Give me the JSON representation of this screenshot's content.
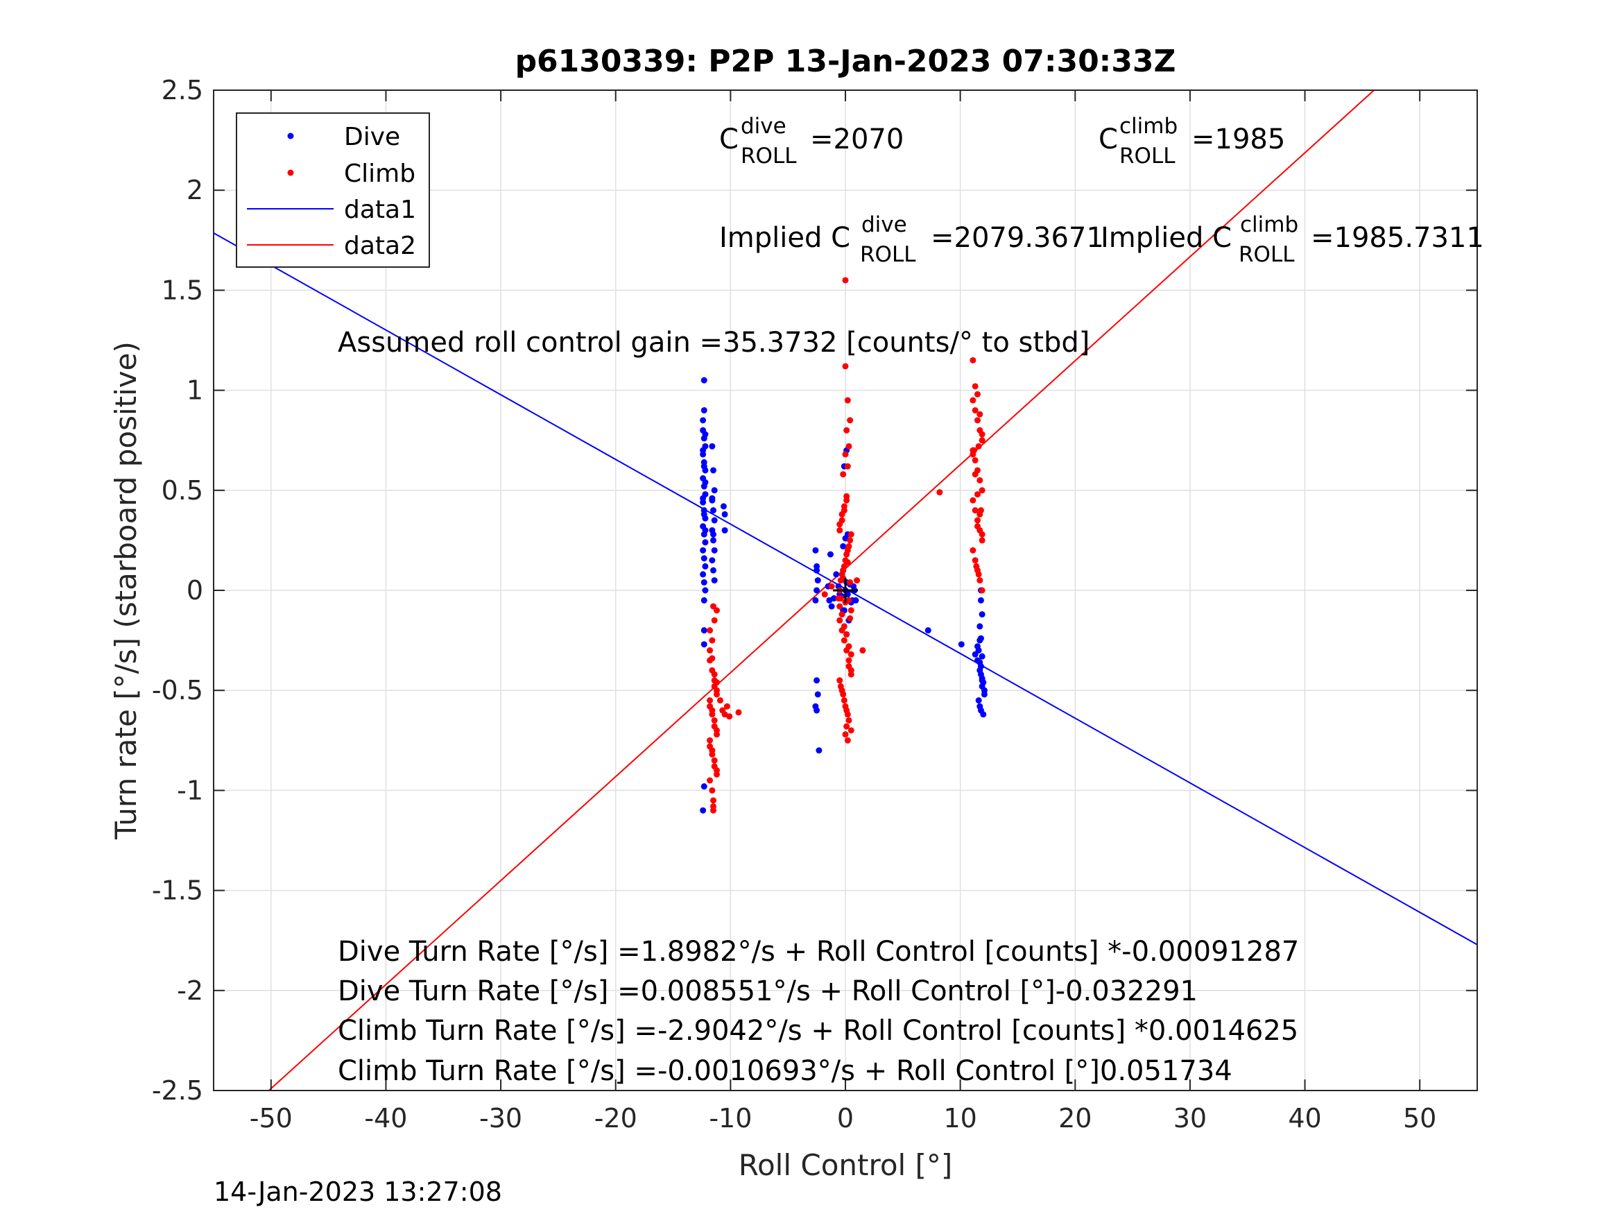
{
  "chart_data": {
    "type": "scatter",
    "title": "p6130339: P2P 13-Jan-2023 07:30:33Z",
    "xlabel": "Roll Control [°]",
    "ylabel": "Turn rate [°/s] (starboard positive)",
    "xlim": [
      -55,
      55
    ],
    "ylim": [
      -2.5,
      2.5
    ],
    "xticks": [
      -50,
      -40,
      -30,
      -20,
      -10,
      0,
      10,
      20,
      30,
      40,
      50
    ],
    "yticks": [
      -2.5,
      -2,
      -1.5,
      -1,
      -0.5,
      0,
      0.5,
      1,
      1.5,
      2,
      2.5
    ],
    "xtick_labels": [
      "-50",
      "-40",
      "-30",
      "-20",
      "-10",
      "0",
      "10",
      "20",
      "30",
      "40",
      "50"
    ],
    "ytick_labels": [
      "-2.5",
      "-2",
      "-1.5",
      "-1",
      "-0.5",
      "0",
      "0.5",
      "1",
      "1.5",
      "2",
      "2.5"
    ],
    "grid": true,
    "legend_position": "top-left",
    "legend": [
      "Dive",
      "Climb",
      "data1",
      "data2"
    ],
    "colors": {
      "dive": "#0000ff",
      "climb": "#ff0000",
      "axes": "#262626",
      "grid": "#dfdfdf"
    },
    "series": [
      {
        "name": "Dive",
        "style": "points",
        "x": [
          -12.4,
          -12.3,
          -12.2,
          -12.4,
          -12.3,
          -12.2,
          -12.4,
          -12.3,
          -12.2,
          -12.4,
          -12.3,
          -12.2,
          -12.4,
          -12.3,
          -12.2,
          -12.4,
          -12.3,
          -12.2,
          -12.4,
          -12.3,
          -12.2,
          -12.4,
          -12.3,
          -12.2,
          -12.4,
          -12.3,
          -12.2,
          -12.4,
          -12.3,
          -12.2,
          -12.3,
          -12.3,
          -12.3,
          -12.3,
          -12.3,
          -12.4,
          -11.6,
          -11.5,
          -11.4,
          -11.6,
          -11.5,
          -11.4,
          -11.6,
          -11.5,
          -11.4,
          -11.6,
          -11.5,
          -11.4,
          -11.6,
          -11.5,
          -10.6,
          -10.5,
          -10.5,
          -2.6,
          -2.5,
          -2.4,
          -2.5,
          -2.6,
          -2.5,
          -2.4,
          -2.5,
          -2.3,
          -2.5,
          -2.6,
          -1.5,
          -1.4,
          -1.2,
          -1.3,
          -1.0,
          -0.8,
          -0.6,
          -0.5,
          -0.4,
          -0.3,
          -0.2,
          -0.1,
          0.0,
          0.1,
          0.2,
          0.4,
          0.6,
          0.8,
          -0.2,
          0.0,
          0.2,
          -0.2,
          0.1,
          0.3,
          0.5,
          0.7,
          0.9,
          0.1,
          -0.1,
          7.2,
          10.1,
          11.3,
          11.5,
          11.7,
          11.9,
          12.1,
          11.5,
          11.7,
          11.9,
          12.1,
          11.6,
          11.8,
          12.0,
          11.6,
          11.8,
          12.0,
          11.7,
          11.9,
          11.8,
          11.7,
          11.8,
          11.9,
          11.8,
          11.9,
          11.7,
          11.8
        ],
        "y": [
          0.8,
          0.76,
          0.72,
          0.68,
          0.64,
          0.6,
          0.56,
          0.52,
          0.48,
          0.44,
          0.4,
          0.36,
          0.32,
          0.28,
          0.24,
          0.2,
          0.16,
          0.12,
          0.08,
          0.04,
          0.0,
          0.85,
          0.9,
          0.78,
          0.7,
          0.62,
          0.54,
          0.46,
          0.38,
          0.3,
          1.05,
          -0.05,
          -0.2,
          -0.27,
          -0.98,
          -1.1,
          0.72,
          0.6,
          0.5,
          0.45,
          0.4,
          0.35,
          0.3,
          0.25,
          0.2,
          0.15,
          0.1,
          0.05,
          0.46,
          0.28,
          0.42,
          0.38,
          0.3,
          0.2,
          0.1,
          0.05,
          0.0,
          -0.05,
          -0.45,
          -0.52,
          -0.6,
          -0.8,
          0.12,
          -0.58,
          0.02,
          -0.05,
          -0.08,
          0.18,
          -0.04,
          0.08,
          0.02,
          -0.02,
          0.05,
          -0.03,
          0.1,
          -0.1,
          0.0,
          0.04,
          -0.02,
          0.03,
          -0.05,
          0.0,
          0.22,
          0.26,
          0.28,
          -0.1,
          -0.22,
          -0.15,
          -0.06,
          0.02,
          -0.05,
          0.7,
          0.62,
          -0.2,
          -0.27,
          -0.32,
          -0.35,
          -0.4,
          -0.45,
          -0.5,
          -0.28,
          -0.36,
          -0.44,
          -0.52,
          -0.3,
          -0.38,
          -0.46,
          -0.55,
          -0.6,
          -0.62,
          -0.25,
          -0.33,
          -0.05,
          -0.58,
          -0.42,
          -0.48,
          0.0,
          -0.12,
          -0.18,
          -0.24
        ]
      },
      {
        "name": "Climb",
        "style": "points",
        "x": [
          -11.8,
          -11.6,
          -11.4,
          -11.2,
          -11.8,
          -11.6,
          -11.4,
          -11.2,
          -11.8,
          -11.6,
          -11.4,
          -11.2,
          -11.8,
          -11.6,
          -11.4,
          -11.2,
          -11.8,
          -11.6,
          -11.4,
          -11.2,
          -11.8,
          -11.6,
          -11.4,
          -11.2,
          -11.8,
          -11.6,
          -11.4,
          -11.2,
          -11.8,
          -11.6,
          -11.4,
          -11.2,
          -11.5,
          -11.5,
          -11.5,
          -11.5,
          -10.9,
          -10.7,
          -10.5,
          -10.3,
          -10.1,
          -9.3,
          -1.8,
          -1.2,
          -0.6,
          -0.4,
          -0.2,
          0.0,
          0.2,
          0.4,
          -0.5,
          -0.3,
          -0.1,
          0.1,
          0.3,
          0.5,
          -0.5,
          -0.3,
          -0.1,
          0.1,
          0.3,
          0.5,
          -0.5,
          -0.3,
          -0.1,
          0.1,
          0.3,
          0.5,
          -0.5,
          -0.3,
          -0.1,
          0.1,
          0.3,
          0.5,
          -0.5,
          -0.3,
          -0.1,
          0.1,
          0.3,
          0.5,
          -0.5,
          -0.3,
          -0.1,
          0.1,
          0.3,
          0.5,
          -0.4,
          -0.2,
          0.0,
          0.2,
          0.4,
          -0.4,
          -0.2,
          0.0,
          0.2,
          0.4,
          0.0,
          0.0,
          0.2,
          0.4,
          0.1,
          0.3,
          0.0,
          0.2,
          -0.2,
          0.0,
          0.2,
          0.1,
          1.0,
          1.5,
          8.2,
          11.1,
          11.3,
          11.5,
          11.7,
          11.9,
          11.1,
          11.3,
          11.5,
          11.7,
          11.9,
          11.1,
          11.3,
          11.5,
          11.7,
          11.9,
          11.1,
          11.3,
          11.5,
          11.7,
          11.9,
          11.1,
          11.3,
          11.5,
          11.7,
          11.9,
          11.1,
          11.3,
          11.5,
          11.7,
          11.9,
          11.6,
          11.5,
          11.4,
          11.6,
          11.2,
          11.8
        ],
        "y": [
          -0.35,
          -0.4,
          -0.45,
          -0.5,
          -0.55,
          -0.6,
          -0.65,
          -0.7,
          -0.75,
          -0.8,
          -0.85,
          -0.9,
          -0.95,
          -1.0,
          -0.48,
          -0.52,
          -0.58,
          -0.62,
          -0.68,
          -0.72,
          -0.78,
          -0.82,
          -0.88,
          -0.92,
          -0.3,
          -0.34,
          -0.42,
          -0.46,
          -0.2,
          -0.25,
          -0.15,
          -0.1,
          -1.05,
          -1.08,
          -1.1,
          -0.08,
          -0.55,
          -0.6,
          -0.62,
          -0.58,
          -0.63,
          -0.61,
          -0.02,
          0.02,
          -0.04,
          0.05,
          0.1,
          0.15,
          0.2,
          0.25,
          0.3,
          0.35,
          0.4,
          0.45,
          -0.05,
          -0.1,
          -0.15,
          -0.2,
          -0.25,
          -0.3,
          -0.35,
          -0.4,
          -0.45,
          -0.5,
          -0.55,
          -0.6,
          -0.65,
          -0.7,
          0.0,
          0.08,
          0.12,
          0.18,
          0.22,
          0.28,
          -0.08,
          -0.12,
          -0.18,
          -0.22,
          -0.28,
          -0.32,
          0.33,
          0.38,
          0.42,
          0.47,
          -0.38,
          -0.42,
          -0.48,
          -0.52,
          -0.58,
          -0.62,
          0.04,
          -0.04,
          0.06,
          -0.06,
          0.14,
          -0.14,
          1.12,
          1.55,
          0.95,
          0.85,
          0.8,
          0.72,
          0.68,
          0.62,
          0.58,
          -0.72,
          -0.75,
          -0.68,
          0.05,
          -0.3,
          0.49,
          0.95,
          0.9,
          0.85,
          0.8,
          0.75,
          0.7,
          0.65,
          0.6,
          0.55,
          0.5,
          0.45,
          0.4,
          0.35,
          0.3,
          0.25,
          0.2,
          0.15,
          0.1,
          0.05,
          0.0,
          1.15,
          1.02,
          0.98,
          0.88,
          0.78,
          0.68,
          0.58,
          0.48,
          0.38,
          0.28,
          0.72,
          0.32,
          0.12,
          0.08,
          0.7,
          0.4
        ]
      },
      {
        "name": "data1",
        "style": "line",
        "x": [
          -55,
          55
        ],
        "y": [
          1.7862,
          -1.7709
        ]
      },
      {
        "name": "data2",
        "style": "line",
        "x": [
          -50.19,
          46.02
        ],
        "y": [
          -2.5,
          2.5
        ]
      }
    ],
    "marker": {
      "label": "origin-crosshair",
      "x": 0,
      "y": 0
    },
    "annotations": {
      "c_dive_base": "C",
      "c_dive_sup": "dive",
      "c_dive_sub": "ROLL",
      "c_dive_value": "=2070",
      "c_climb_base": "C",
      "c_climb_sup": "climb",
      "c_climb_sub": "ROLL",
      "c_climb_value": "=1985",
      "implied_dive_prefix": "Implied C",
      "implied_dive_sup": "dive",
      "implied_dive_sub": "ROLL",
      "implied_dive_value": "=2079.3671",
      "implied_climb_prefix": "Implied C",
      "implied_climb_sup": "climb",
      "implied_climb_sub": "ROLL",
      "implied_climb_value": "=1985.7311",
      "gain": "Assumed roll control gain =35.3732 [counts/° to stbd]",
      "eq1": "Dive Turn Rate [°/s] =1.8982°/s + Roll Control [counts] *-0.00091287",
      "eq2": "Dive Turn Rate [°/s] =0.008551°/s + Roll Control [°]-0.032291",
      "eq3": "Climb Turn Rate [°/s] =-2.9042°/s + Roll Control [counts] *0.0014625",
      "eq4": "Climb Turn Rate [°/s] =-0.0010693°/s + Roll Control [°]0.051734"
    },
    "timestamp": "14-Jan-2023 13:27:08"
  }
}
